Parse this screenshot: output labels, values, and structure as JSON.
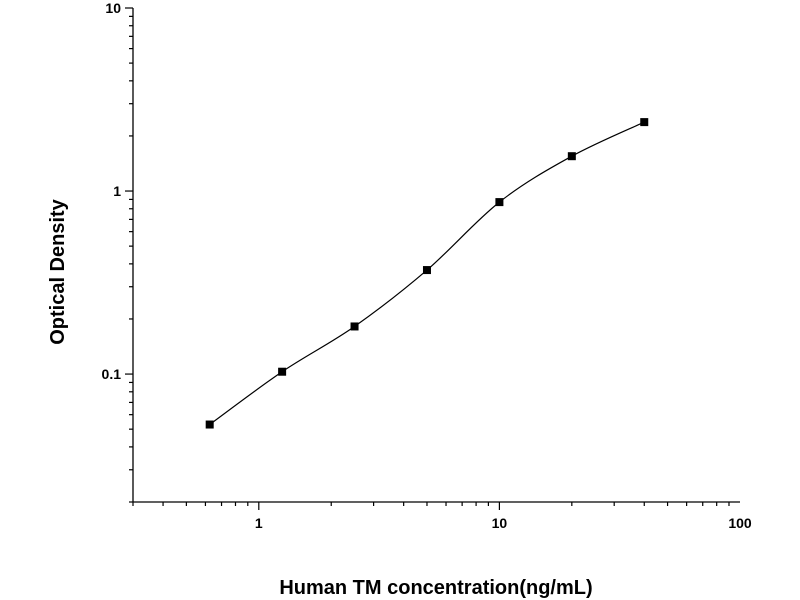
{
  "chart_data": {
    "type": "scatter",
    "title": "",
    "xlabel": "Human TM concentration(ng/mL)",
    "ylabel": "Optical Density",
    "x_scale": "log",
    "y_scale": "log",
    "xlim": [
      0.3,
      100
    ],
    "ylim": [
      0.02,
      10
    ],
    "x_ticks": [
      {
        "value": 1,
        "label": "1"
      },
      {
        "value": 10,
        "label": "10"
      },
      {
        "value": 100,
        "label": "100"
      }
    ],
    "y_ticks": [
      {
        "value": 0.1,
        "label": "0.1"
      },
      {
        "value": 1,
        "label": "1"
      },
      {
        "value": 10,
        "label": "10"
      }
    ],
    "grid": false,
    "legend": "none",
    "series": [
      {
        "marker": "square",
        "color": "#000000",
        "fit_line": true,
        "points": [
          {
            "x": 0.625,
            "y": 0.053
          },
          {
            "x": 1.25,
            "y": 0.103
          },
          {
            "x": 2.5,
            "y": 0.182
          },
          {
            "x": 5,
            "y": 0.37
          },
          {
            "x": 10,
            "y": 0.87
          },
          {
            "x": 20,
            "y": 1.55
          },
          {
            "x": 40,
            "y": 2.38
          }
        ]
      }
    ]
  }
}
